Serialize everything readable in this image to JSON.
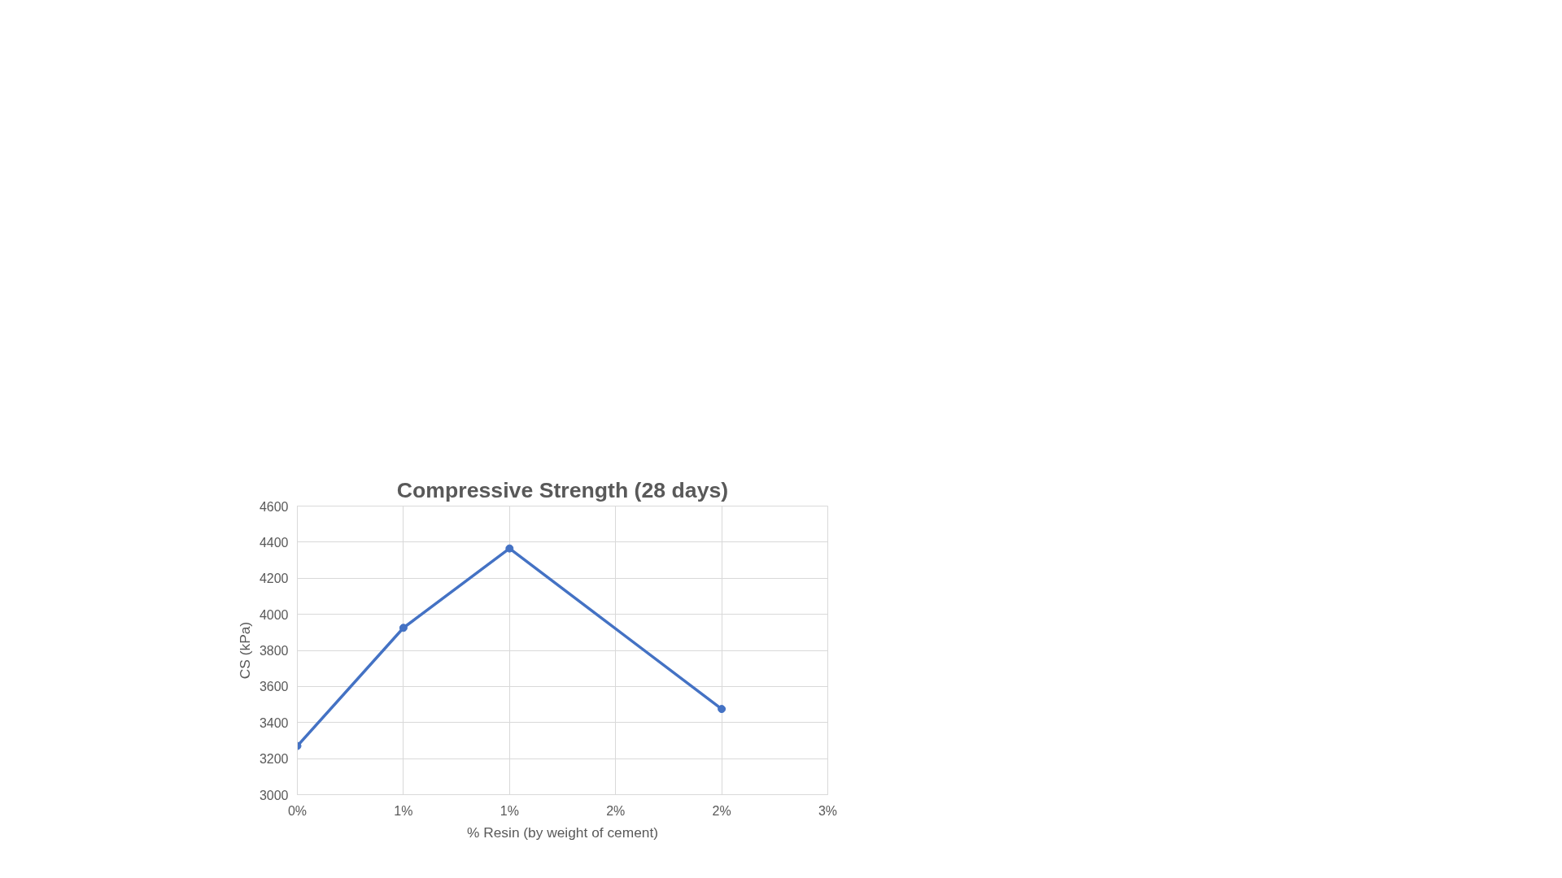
{
  "chart_data": {
    "type": "line",
    "title": "Compressive Strength (28 days)",
    "xlabel": "% Resin (by weight of cement)",
    "ylabel": "CS (kPa)",
    "x": [
      0,
      0.5,
      1,
      2
    ],
    "series": [
      {
        "color": "#4472c4",
        "values": [
          3270,
          3925,
          4365,
          3475
        ]
      }
    ],
    "xlim": [
      0,
      2.5
    ],
    "ylim": [
      3000,
      4600
    ],
    "xticks": [
      {
        "value": 0,
        "label": "0%"
      },
      {
        "value": 0.5,
        "label": "1%"
      },
      {
        "value": 1,
        "label": "1%"
      },
      {
        "value": 1.5,
        "label": "2%"
      },
      {
        "value": 2,
        "label": "2%"
      },
      {
        "value": 2.5,
        "label": "3%"
      }
    ],
    "yticks": [
      3000,
      3200,
      3400,
      3600,
      3800,
      4000,
      4200,
      4400,
      4600
    ],
    "grid": true,
    "marker": "circle",
    "line_style": "solid"
  }
}
